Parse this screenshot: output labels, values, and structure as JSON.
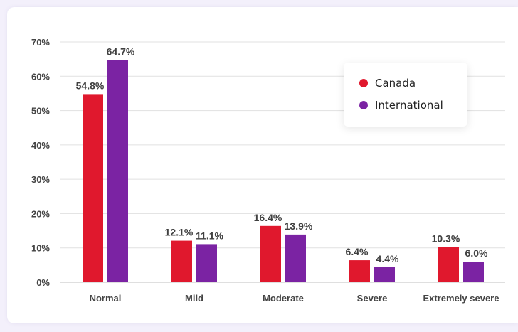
{
  "chart_data": {
    "type": "bar",
    "categories": [
      "Normal",
      "Mild",
      "Moderate",
      "Severe",
      "Extremely severe"
    ],
    "series": [
      {
        "name": "Canada",
        "color": "#e0182d",
        "values": [
          54.8,
          12.1,
          16.4,
          6.4,
          10.3
        ],
        "labels": [
          "54.8%",
          "12.1%",
          "16.4%",
          "6.4%",
          "10.3%"
        ]
      },
      {
        "name": "International",
        "color": "#7b23a3",
        "values": [
          64.7,
          11.1,
          13.9,
          4.4,
          6.0
        ],
        "labels": [
          "64.7%",
          "11.1%",
          "13.9%",
          "4.4%",
          "6.0%"
        ]
      }
    ],
    "ylim": [
      0,
      70
    ],
    "yticks": [
      0,
      10,
      20,
      30,
      40,
      50,
      60,
      70
    ],
    "ytick_labels": [
      "0%",
      "10%",
      "20%",
      "30%",
      "40%",
      "50%",
      "60%",
      "70%"
    ],
    "grid": true,
    "legend_position": "top-right",
    "title": "",
    "xlabel": "",
    "ylabel": ""
  },
  "legend": {
    "items": [
      {
        "label": "Canada",
        "color": "#e0182d"
      },
      {
        "label": "International",
        "color": "#7b23a3"
      }
    ]
  }
}
